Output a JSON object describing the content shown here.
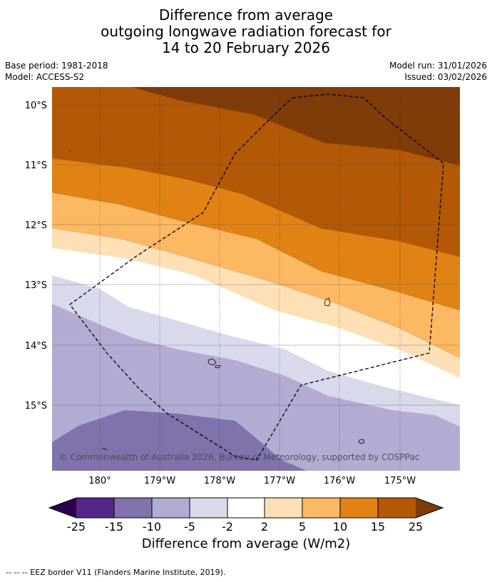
{
  "title": {
    "line1": "Difference from average",
    "line2": "outgoing longwave radiation forecast for",
    "line3": "14 to 20 February 2026"
  },
  "meta": {
    "base_period": "Base period: 1981-2018",
    "model": "Model: ACCESS-S2",
    "model_run": "Model run: 31/01/2026",
    "issued": "Issued: 03/02/2026"
  },
  "map": {
    "lat_labels": [
      "10°S",
      "11°S",
      "12°S",
      "13°S",
      "14°S",
      "15°S"
    ],
    "lon_labels": [
      "180°",
      "179°W",
      "178°W",
      "177°W",
      "176°W",
      "175°W"
    ],
    "copyright": "© Commonwealth of Australia 2026, Bureau of Meteorology, supported by COSPPac",
    "colors": {
      "c25plus": "#7f3b08",
      "c15_25": "#b35806",
      "c10_15": "#e08214",
      "c5_10": "#fdb863",
      "c2_5": "#fee0b6",
      "cm2_2": "#ffffff",
      "cm5_m2": "#d8daeb",
      "cm10_m5": "#b2abd2",
      "cm15_m10": "#8073ac",
      "cm25_m15": "#542788",
      "cm25minus": "#2d004b"
    }
  },
  "colorbar": {
    "ticks": [
      "-25",
      "-15",
      "-10",
      "-5",
      "-2",
      "2",
      "5",
      "10",
      "15",
      "25"
    ],
    "label": "Difference from average (W/m2)"
  },
  "footnote": "--  --  -- EEZ border V11 (Flanders Marine Institute, 2019)."
}
